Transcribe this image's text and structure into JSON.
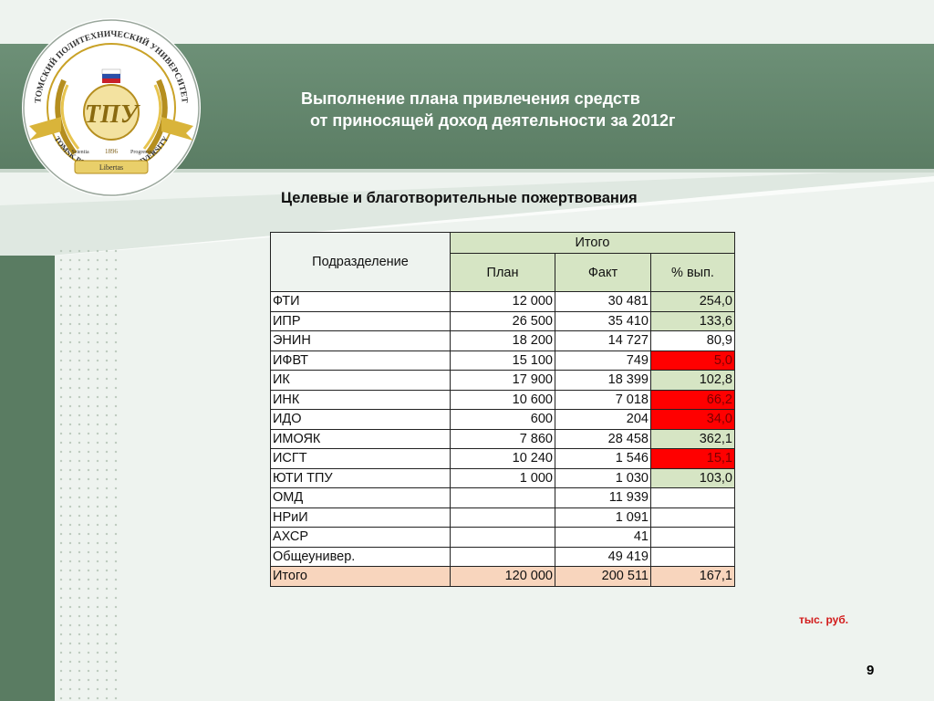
{
  "header": {
    "title_line1": "Выполнение плана привлечения средств",
    "title_line2": "от приносящей доход деятельности  за 2012г"
  },
  "logo": {
    "arc_top": "ТОМСКИЙ ПОЛИТЕХНИЧЕСКИЙ УНИВЕРСИТЕТ",
    "arc_bottom": "TOMSK POLYTECHNIC UNIVERSITY",
    "monogram": "ТПУ",
    "ribbon": "Libertas",
    "left_ribbon": "Scientia",
    "right_ribbon": "Progressus",
    "year": "1896"
  },
  "subtitle": "Целевые и благотворительные пожертвования",
  "table": {
    "headers": {
      "division": "Подразделение",
      "total": "Итого",
      "plan": "План",
      "fact": "Факт",
      "pct": "% вып."
    },
    "rows": [
      {
        "name": "ФТИ",
        "plan": "12 000",
        "fact": "30 481",
        "pct": "254,0",
        "status": "good"
      },
      {
        "name": "ИПР",
        "plan": "26 500",
        "fact": "35 410",
        "pct": "133,6",
        "status": "good"
      },
      {
        "name": "ЭНИН",
        "plan": "18 200",
        "fact": "14 727",
        "pct": "80,9",
        "status": ""
      },
      {
        "name": "ИФВТ",
        "plan": "15 100",
        "fact": "749",
        "pct": "5,0",
        "status": "bad"
      },
      {
        "name": "ИК",
        "plan": "17 900",
        "fact": "18 399",
        "pct": "102,8",
        "status": "good"
      },
      {
        "name": "ИНК",
        "plan": "10 600",
        "fact": "7 018",
        "pct": "66,2",
        "status": "bad"
      },
      {
        "name": "ИДО",
        "plan": "600",
        "fact": "204",
        "pct": "34,0",
        "status": "bad"
      },
      {
        "name": "ИМОЯК",
        "plan": "7 860",
        "fact": "28 458",
        "pct": "362,1",
        "status": "good"
      },
      {
        "name": "ИСГТ",
        "plan": "10 240",
        "fact": "1 546",
        "pct": "15,1",
        "status": "bad"
      },
      {
        "name": "ЮТИ ТПУ",
        "plan": "1 000",
        "fact": "1 030",
        "pct": "103,0",
        "status": "good"
      },
      {
        "name": "ОМД",
        "plan": "",
        "fact": "11 939",
        "pct": "",
        "status": ""
      },
      {
        "name": "НРиИ",
        "plan": "",
        "fact": "1 091",
        "pct": "",
        "status": ""
      },
      {
        "name": "АХСР",
        "plan": "",
        "fact": "41",
        "pct": "",
        "status": ""
      },
      {
        "name": "Общеунивер.",
        "plan": "",
        "fact": "49 419",
        "pct": "",
        "status": ""
      }
    ],
    "total": {
      "name": "Итого",
      "plan": "120 000",
      "fact": "200 511",
      "pct": "167,1"
    }
  },
  "units": "тыс. руб.",
  "page_number": "9",
  "colors": {
    "header_green": "#5b7d64",
    "good_fill": "#d6e5c4",
    "bad_fill": "#ff0000",
    "total_fill": "#f8d5bd",
    "units_red": "#d21a1a"
  }
}
